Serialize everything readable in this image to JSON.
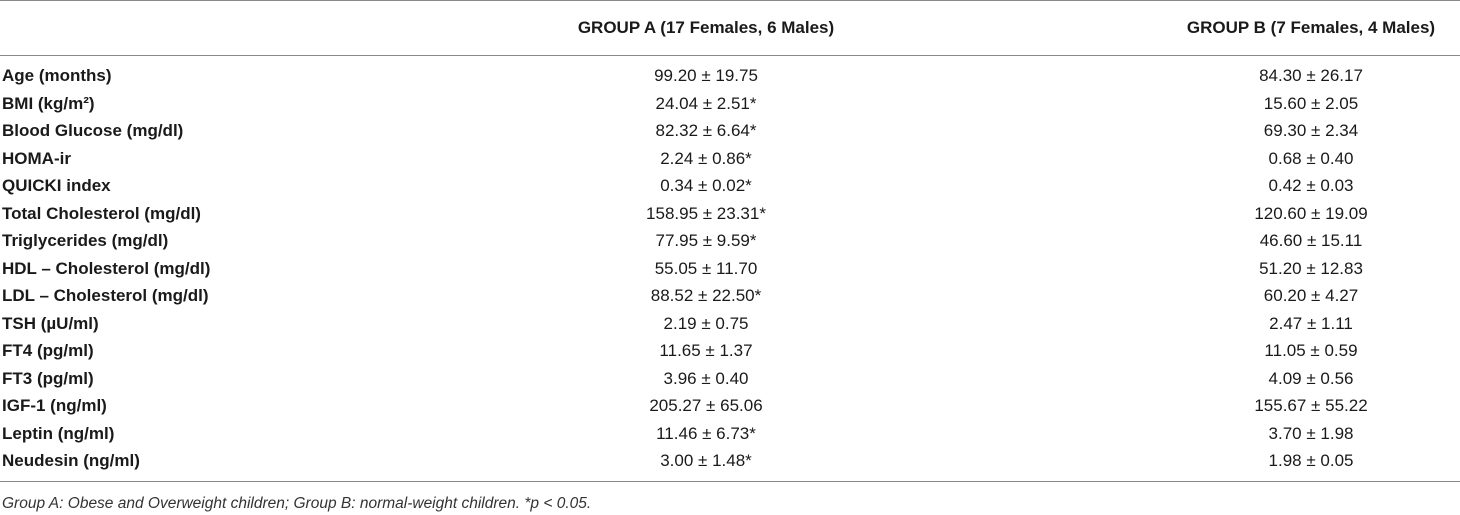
{
  "table": {
    "header": [
      "GROUP A (17 Females, 6 Males)",
      "GROUP B (7 Females, 4 Males)"
    ],
    "rows": [
      [
        "Age (months)",
        "99.20 ± 19.75",
        "84.30 ± 26.17"
      ],
      [
        "BMI (kg/m²)",
        "24.04 ± 2.51*",
        "15.60 ± 2.05"
      ],
      [
        "Blood Glucose (mg/dl)",
        "82.32 ± 6.64*",
        "69.30 ± 2.34"
      ],
      [
        "HOMA-ir",
        "2.24 ± 0.86*",
        "0.68 ± 0.40"
      ],
      [
        "QUICKI index",
        "0.34 ± 0.02*",
        "0.42 ± 0.03"
      ],
      [
        "Total Cholesterol (mg/dl)",
        "158.95 ± 23.31*",
        "120.60 ± 19.09"
      ],
      [
        "Triglycerides (mg/dl)",
        "77.95 ± 9.59*",
        "46.60 ± 15.11"
      ],
      [
        "HDL – Cholesterol (mg/dl)",
        "55.05 ± 11.70",
        "51.20 ± 12.83"
      ],
      [
        "LDL – Cholesterol (mg/dl)",
        "88.52 ± 22.50*",
        "60.20 ± 4.27"
      ],
      [
        "TSH (µU/ml)",
        "2.19 ± 0.75",
        "2.47 ± 1.11"
      ],
      [
        "FT4 (pg/ml)",
        "11.65 ± 1.37",
        "11.05 ± 0.59"
      ],
      [
        "FT3 (pg/ml)",
        "3.96 ± 0.40",
        "4.09 ± 0.56"
      ],
      [
        "IGF-1 (ng/ml)",
        "205.27 ± 65.06",
        "155.67 ± 55.22"
      ],
      [
        "Leptin (ng/ml)",
        "11.46 ± 6.73*",
        "3.70 ± 1.98"
      ],
      [
        "Neudesin (ng/ml)",
        "3.00 ± 1.48*",
        "1.98 ± 0.05"
      ]
    ],
    "footnote": "Group A: Obese and Overweight children; Group B: normal-weight children. *p < 0.05."
  }
}
